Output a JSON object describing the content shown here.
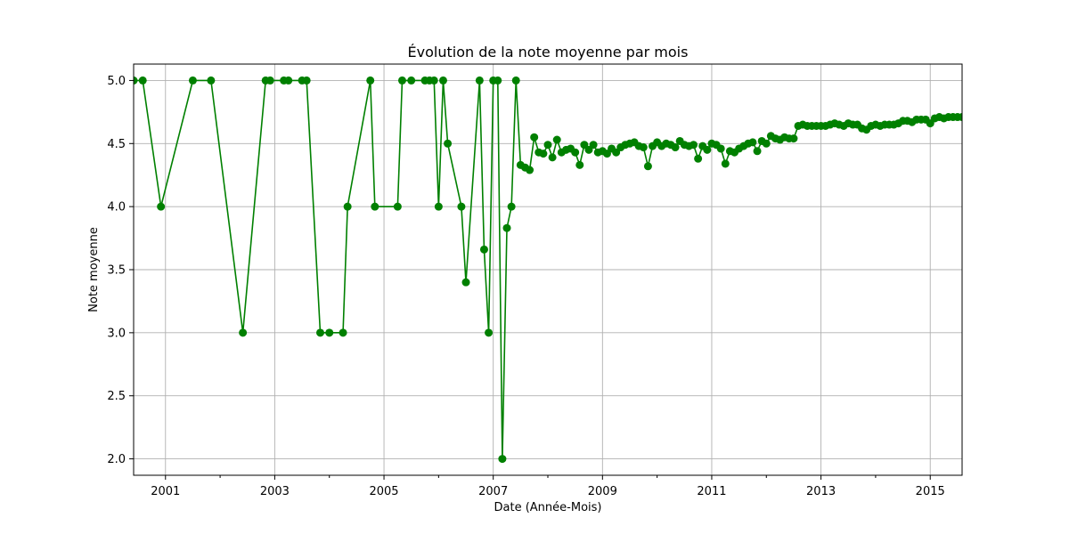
{
  "chart_data": {
    "type": "line",
    "title": "Évolution de la note moyenne par mois",
    "xlabel": "Date (Année-Mois)",
    "ylabel": "Note moyenne",
    "x_range": [
      "2000-06",
      "2015-08"
    ],
    "ylim": [
      1.87,
      5.13
    ],
    "x_ticks": [
      "2001",
      "2003",
      "2005",
      "2007",
      "2009",
      "2011",
      "2013",
      "2015"
    ],
    "y_ticks": [
      "2.0",
      "2.5",
      "3.0",
      "3.5",
      "4.0",
      "4.5",
      "5.0"
    ],
    "grid": true,
    "colors": {
      "line": "#008000",
      "marker": "#008000",
      "grid": "#b0b0b0"
    },
    "series": [
      {
        "x": [
          "2000-06",
          "2000-08",
          "2000-12",
          "2001-07",
          "2001-11",
          "2002-06",
          "2002-11",
          "2002-12",
          "2003-03",
          "2003-04",
          "2003-07",
          "2003-08",
          "2003-11",
          "2004-01",
          "2004-04",
          "2004-05",
          "2004-10",
          "2004-11",
          "2005-04",
          "2005-05",
          "2005-07",
          "2005-10",
          "2005-11",
          "2005-12",
          "2006-01",
          "2006-02",
          "2006-03",
          "2006-06",
          "2006-07",
          "2006-10",
          "2006-11",
          "2006-12",
          "2007-01",
          "2007-02",
          "2007-03",
          "2007-04",
          "2007-05",
          "2007-06",
          "2007-07",
          "2007-08",
          "2007-09",
          "2007-10",
          "2007-11",
          "2007-12",
          "2008-01",
          "2008-02",
          "2008-03",
          "2008-04",
          "2008-05",
          "2008-06",
          "2008-07",
          "2008-08",
          "2008-09",
          "2008-10",
          "2008-11",
          "2008-12",
          "2009-01",
          "2009-02",
          "2009-03",
          "2009-04",
          "2009-05",
          "2009-06",
          "2009-07",
          "2009-08",
          "2009-09",
          "2009-10",
          "2009-11",
          "2009-12",
          "2010-01",
          "2010-02",
          "2010-03",
          "2010-04",
          "2010-05",
          "2010-06",
          "2010-07",
          "2010-08",
          "2010-09",
          "2010-10",
          "2010-11",
          "2010-12",
          "2011-01",
          "2011-02",
          "2011-03",
          "2011-04",
          "2011-05",
          "2011-06",
          "2011-07",
          "2011-08",
          "2011-09",
          "2011-10",
          "2011-11",
          "2011-12",
          "2012-01",
          "2012-02",
          "2012-03",
          "2012-04",
          "2012-05",
          "2012-06",
          "2012-07",
          "2012-08",
          "2012-09",
          "2012-10",
          "2012-11",
          "2012-12",
          "2013-01",
          "2013-02",
          "2013-03",
          "2013-04",
          "2013-05",
          "2013-06",
          "2013-07",
          "2013-08",
          "2013-09",
          "2013-10",
          "2013-11",
          "2013-12",
          "2014-01",
          "2014-02",
          "2014-03",
          "2014-04",
          "2014-05",
          "2014-06",
          "2014-07",
          "2014-08",
          "2014-09",
          "2014-10",
          "2014-11",
          "2014-12",
          "2015-01",
          "2015-02",
          "2015-03",
          "2015-04",
          "2015-05",
          "2015-06",
          "2015-07",
          "2015-08"
        ],
        "y": [
          5.0,
          5.0,
          4.0,
          5.0,
          5.0,
          3.0,
          5.0,
          5.0,
          5.0,
          5.0,
          5.0,
          5.0,
          3.0,
          3.0,
          3.0,
          4.0,
          5.0,
          4.0,
          4.0,
          5.0,
          5.0,
          5.0,
          5.0,
          5.0,
          4.0,
          5.0,
          4.5,
          4.0,
          3.4,
          5.0,
          3.66,
          3.0,
          5.0,
          5.0,
          2.0,
          3.83,
          4.0,
          5.0,
          4.33,
          4.31,
          4.29,
          4.55,
          4.43,
          4.42,
          4.49,
          4.39,
          4.53,
          4.43,
          4.45,
          4.46,
          4.43,
          4.33,
          4.49,
          4.45,
          4.49,
          4.43,
          4.44,
          4.42,
          4.46,
          4.43,
          4.47,
          4.49,
          4.5,
          4.51,
          4.48,
          4.47,
          4.32,
          4.48,
          4.51,
          4.48,
          4.5,
          4.49,
          4.47,
          4.52,
          4.49,
          4.48,
          4.49,
          4.38,
          4.48,
          4.45,
          4.5,
          4.49,
          4.46,
          4.34,
          4.44,
          4.43,
          4.46,
          4.48,
          4.5,
          4.51,
          4.44,
          4.52,
          4.5,
          4.56,
          4.54,
          4.53,
          4.55,
          4.54,
          4.54,
          4.64,
          4.65,
          4.64,
          4.64,
          4.64,
          4.64,
          4.64,
          4.65,
          4.66,
          4.65,
          4.64,
          4.66,
          4.65,
          4.65,
          4.62,
          4.61,
          4.64,
          4.65,
          4.64,
          4.65,
          4.65,
          4.65,
          4.66,
          4.68,
          4.68,
          4.67,
          4.69,
          4.69,
          4.69,
          4.66,
          4.7,
          4.71,
          4.7,
          4.71,
          4.71,
          4.71,
          4.71
        ]
      }
    ]
  }
}
